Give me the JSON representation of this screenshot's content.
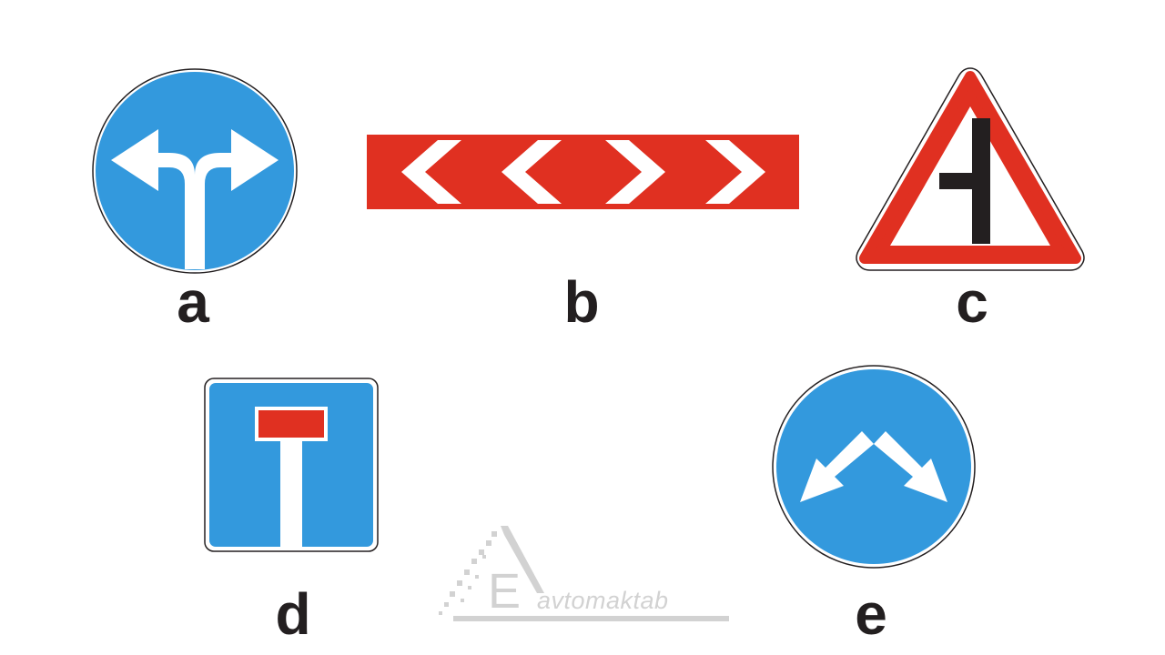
{
  "signs": [
    {
      "id": "a",
      "label": "a",
      "description": "keep straight-split left/right mandatory sign",
      "color": "#3399dd"
    },
    {
      "id": "b",
      "label": "b",
      "description": "red chevron board",
      "color": "#e03021"
    },
    {
      "id": "c",
      "label": "c",
      "description": "warning triangle side road",
      "color": "#e03021"
    },
    {
      "id": "d",
      "label": "d",
      "description": "dead end square sign",
      "color": "#3399dd"
    },
    {
      "id": "e",
      "label": "e",
      "description": "pass either side mandatory sign",
      "color": "#3399dd"
    }
  ],
  "watermark": {
    "text": "avtomaktab",
    "letter": "E",
    "color": "#d2d2d2"
  },
  "colors": {
    "blue": "#3399dd",
    "red": "#e03021",
    "black": "#231f20",
    "white": "#ffffff"
  }
}
